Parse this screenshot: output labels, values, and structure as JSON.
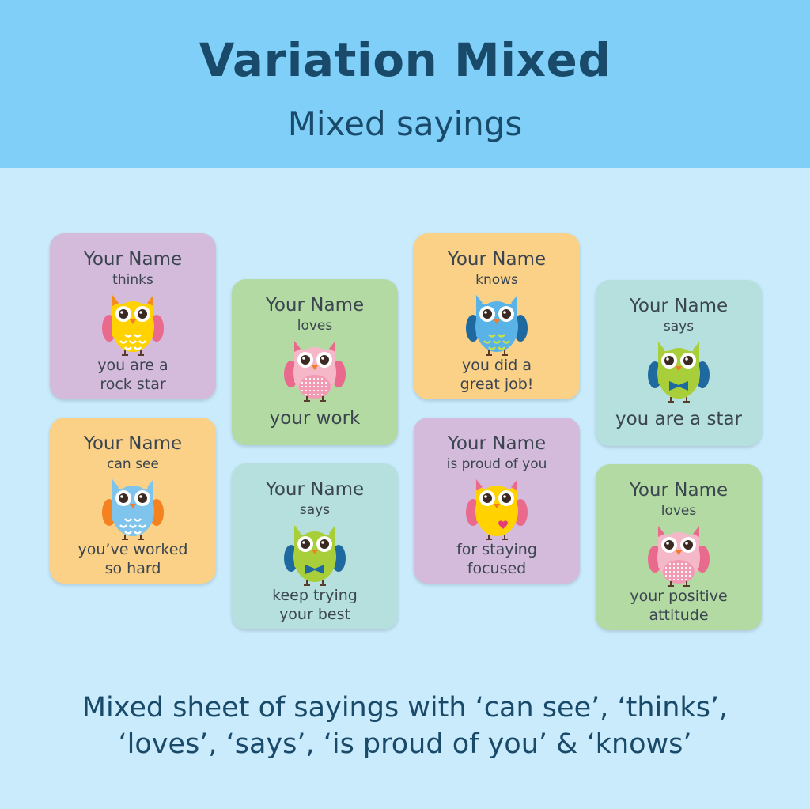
{
  "header": {
    "title": "Variation Mixed",
    "subtitle": "Mixed sayings"
  },
  "colors": {
    "header_bg": "#7fcff9",
    "page_bg": "#c9ebfc",
    "title": "#1a4a6a",
    "card_text": "#3b4550"
  },
  "cards": [
    {
      "name": "Your Name",
      "verb": "thinks",
      "saying": [
        "you are a",
        "rock star"
      ],
      "bg": "#d4bbdb",
      "owl": {
        "body": "#ffd200",
        "wing": "#e96a8c",
        "belly": "#ffd200",
        "ear": "#f38b1f",
        "accessory": "hearts"
      }
    },
    {
      "name": "Your Name",
      "verb": "can see",
      "saying": [
        "you’ve worked",
        "so hard"
      ],
      "bg": "#fad186",
      "owl": {
        "body": "#7fc4ec",
        "wing": "#f58220",
        "belly": "#7fc4ec",
        "ear": "#7fc4ec",
        "accessory": "scallops"
      }
    },
    {
      "name": "Your Name",
      "verb": "loves",
      "saying": [
        "your work"
      ],
      "bg": "#b3daa2",
      "owl": {
        "body": "#f5b8c8",
        "wing": "#e96a8c",
        "belly": "#f29ab4",
        "ear": "#e96a8c",
        "accessory": "dots"
      }
    },
    {
      "name": "Your Name",
      "verb": "says",
      "saying": [
        "keep trying",
        "your best"
      ],
      "bg": "#b6e0de",
      "owl": {
        "body": "#a8cf3a",
        "wing": "#1e6aa0",
        "belly": "#a8cf3a",
        "ear": "#a8cf3a",
        "accessory": "bowtie"
      }
    },
    {
      "name": "Your Name",
      "verb": "knows",
      "saying": [
        "you did a",
        "great job!"
      ],
      "bg": "#fad186",
      "owl": {
        "body": "#5ab3e6",
        "wing": "#1e6aa0",
        "belly": "#5ab3e6",
        "ear": "#5ab3e6",
        "accessory": "ticks"
      }
    },
    {
      "name": "Your Name",
      "verb": "is proud of you",
      "saying": [
        "for staying",
        "focused"
      ],
      "bg": "#d4bbdb",
      "owl": {
        "body": "#ffd200",
        "wing": "#e96a8c",
        "belly": "#ffd200",
        "ear": "#e96a8c",
        "accessory": "heart"
      }
    },
    {
      "name": "Your Name",
      "verb": "says",
      "saying": [
        "you are a star"
      ],
      "bg": "#b6e0de",
      "owl": {
        "body": "#a8cf3a",
        "wing": "#1e6aa0",
        "belly": "#a8cf3a",
        "ear": "#a8cf3a",
        "accessory": "bowtie"
      }
    },
    {
      "name": "Your Name",
      "verb": "loves",
      "saying": [
        "your positive",
        "attitude"
      ],
      "bg": "#b3daa2",
      "owl": {
        "body": "#f5b8c8",
        "wing": "#e96a8c",
        "belly": "#f29ab4",
        "ear": "#e96a8c",
        "accessory": "dots"
      }
    }
  ],
  "footer": {
    "line1": "Mixed sheet of sayings with ‘can see’, ‘thinks’,",
    "line2": "‘loves’, ‘says’, ‘is proud of you’ & ‘knows’"
  }
}
